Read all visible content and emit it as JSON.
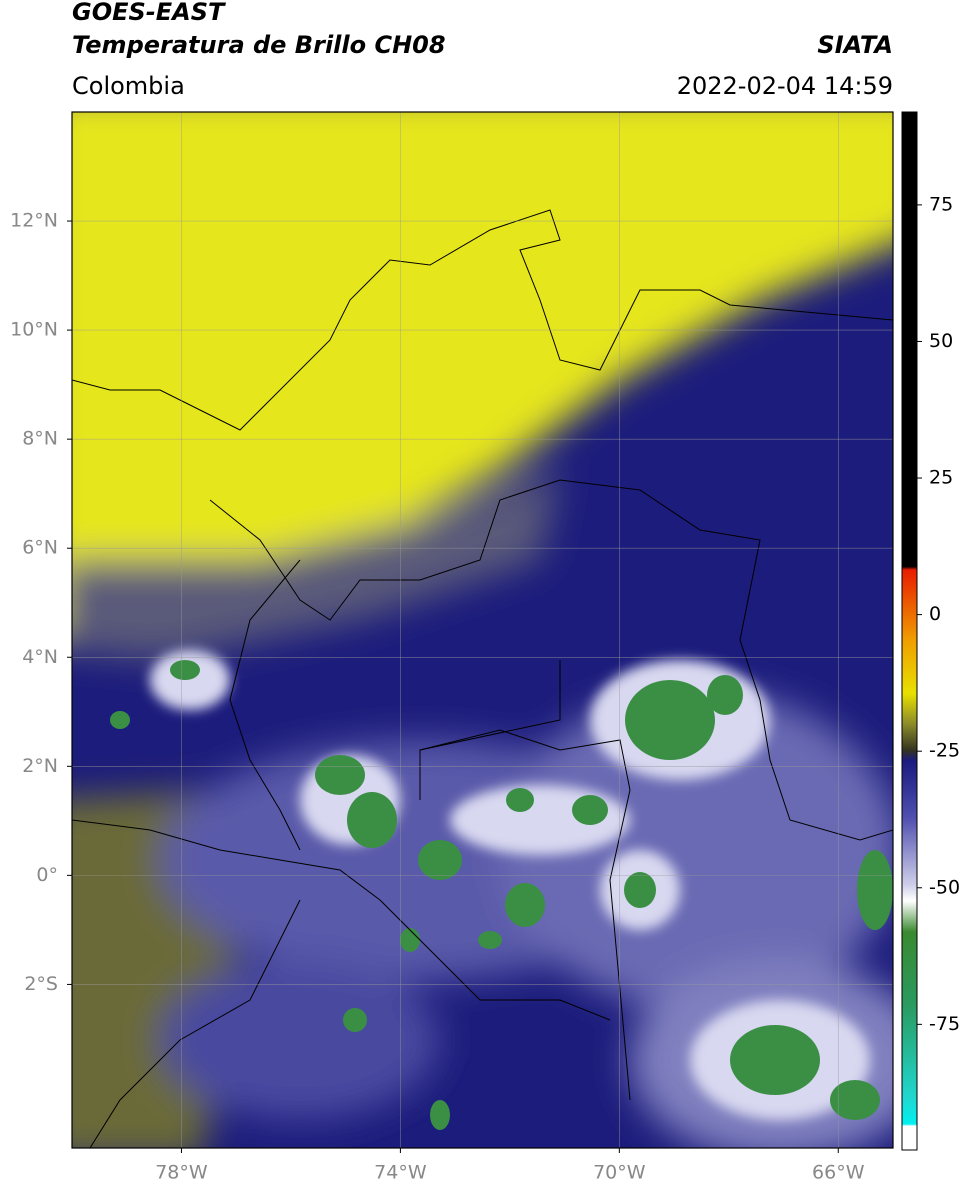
{
  "header": {
    "satellite": "GOES-EAST",
    "product": "Temperatura de Brillo CH08",
    "source": "SIATA",
    "region": "Colombia",
    "datetime": "2022-02-04 14:59"
  },
  "map": {
    "xlim": [
      -80,
      -65
    ],
    "ylim": [
      -5,
      14
    ],
    "xticks": [
      {
        "value": -78,
        "label": "78°W"
      },
      {
        "value": -74,
        "label": "74°W"
      },
      {
        "value": -70,
        "label": "70°W"
      },
      {
        "value": -66,
        "label": "66°W"
      }
    ],
    "yticks": [
      {
        "value": 12,
        "label": "12°N"
      },
      {
        "value": 10,
        "label": "10°N"
      },
      {
        "value": 8,
        "label": "8°N"
      },
      {
        "value": 6,
        "label": "6°N"
      },
      {
        "value": 4,
        "label": "4°N"
      },
      {
        "value": 2,
        "label": "2°N"
      },
      {
        "value": 0,
        "label": "0°"
      },
      {
        "value": -2,
        "label": "2°S"
      }
    ]
  },
  "colorbar": {
    "ylim": [
      -98,
      92
    ],
    "yticks": [
      75,
      50,
      25,
      0,
      -25,
      -50,
      -75
    ]
  }
}
